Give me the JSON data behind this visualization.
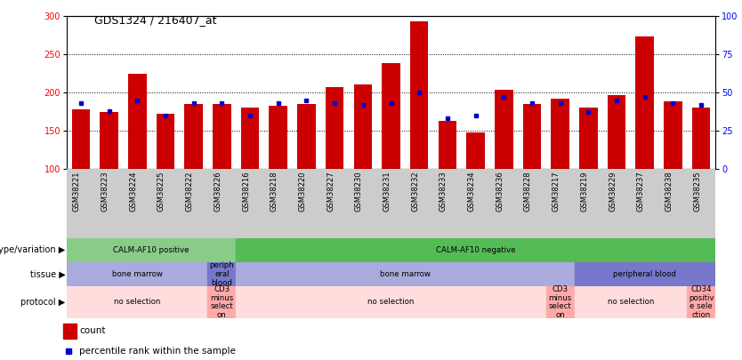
{
  "title": "GDS1324 / 216407_at",
  "samples": [
    "GSM38221",
    "GSM38223",
    "GSM38224",
    "GSM38225",
    "GSM38222",
    "GSM38226",
    "GSM38216",
    "GSM38218",
    "GSM38220",
    "GSM38227",
    "GSM38230",
    "GSM38231",
    "GSM38232",
    "GSM38233",
    "GSM38234",
    "GSM38236",
    "GSM38228",
    "GSM38217",
    "GSM38219",
    "GSM38229",
    "GSM38237",
    "GSM38238",
    "GSM38235"
  ],
  "counts": [
    178,
    175,
    225,
    172,
    185,
    185,
    180,
    183,
    185,
    207,
    210,
    238,
    293,
    163,
    148,
    203,
    185,
    192,
    180,
    197,
    273,
    188,
    180
  ],
  "percentiles": [
    43,
    38,
    45,
    35,
    43,
    43,
    35,
    43,
    45,
    43,
    42,
    43,
    50,
    33,
    35,
    47,
    43,
    43,
    37,
    45,
    47,
    43,
    42
  ],
  "bar_color": "#cc0000",
  "dot_color": "#0000cc",
  "genotype_row": {
    "label": "genotype/variation",
    "segments": [
      {
        "text": "CALM-AF10 positive",
        "start": 0,
        "end": 6,
        "color": "#88cc88"
      },
      {
        "text": "CALM-AF10 negative",
        "start": 6,
        "end": 23,
        "color": "#55bb55"
      }
    ]
  },
  "tissue_row": {
    "label": "tissue",
    "segments": [
      {
        "text": "bone marrow",
        "start": 0,
        "end": 5,
        "color": "#aaaadd"
      },
      {
        "text": "periph\neral\nblood",
        "start": 5,
        "end": 6,
        "color": "#7777cc"
      },
      {
        "text": "bone marrow",
        "start": 6,
        "end": 18,
        "color": "#aaaadd"
      },
      {
        "text": "peripheral blood",
        "start": 18,
        "end": 23,
        "color": "#7777cc"
      }
    ]
  },
  "protocol_row": {
    "label": "protocol",
    "segments": [
      {
        "text": "no selection",
        "start": 0,
        "end": 5,
        "color": "#ffdddd"
      },
      {
        "text": "CD3\nminus\nselect\non",
        "start": 5,
        "end": 6,
        "color": "#ffaaaa"
      },
      {
        "text": "no selection",
        "start": 6,
        "end": 17,
        "color": "#ffdddd"
      },
      {
        "text": "CD3\nminus\nselect\non",
        "start": 17,
        "end": 18,
        "color": "#ffaaaa"
      },
      {
        "text": "no selection",
        "start": 18,
        "end": 22,
        "color": "#ffdddd"
      },
      {
        "text": "CD34\npositiv\ne sele\nction",
        "start": 22,
        "end": 23,
        "color": "#ffaaaa"
      }
    ]
  }
}
